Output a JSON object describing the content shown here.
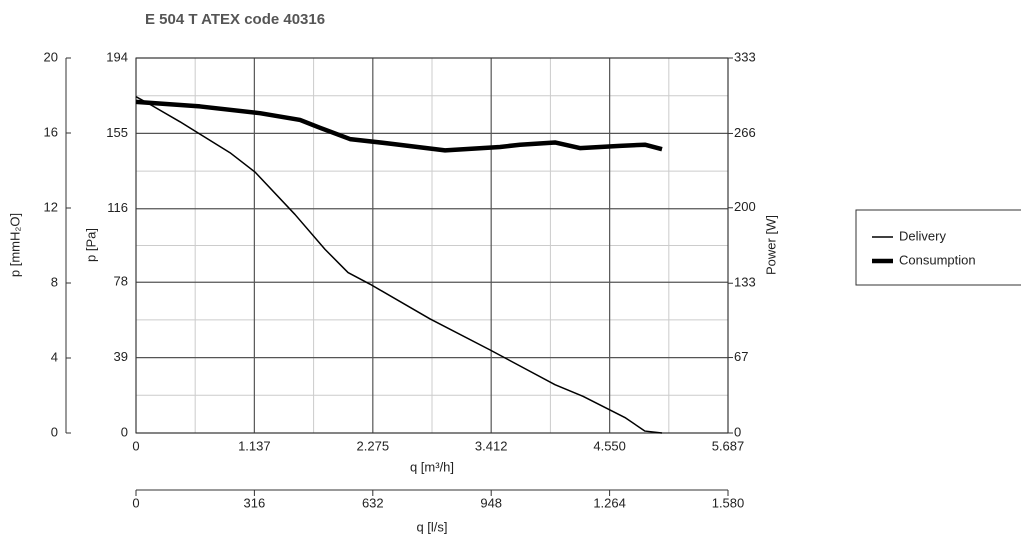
{
  "chart_data": {
    "type": "line",
    "title": "E 504 T ATEX code 40316",
    "x_label": "q [m³/h]",
    "x2_label": "q [l/s]",
    "y_label": "p [Pa]",
    "y3_label": "p [mmH₂O]",
    "y2_label": "Power [W]",
    "xlim": [
      0,
      5687
    ],
    "xticks": [
      0,
      {
        "value": 1137,
        "label": "1.137"
      },
      {
        "value": 2275,
        "label": "2.275"
      },
      {
        "value": 3412,
        "label": "3.412"
      },
      {
        "value": 4550,
        "label": "4.550"
      },
      {
        "value": 5687,
        "label": "5.687"
      }
    ],
    "x2lim": [
      0,
      1580
    ],
    "x2ticks": [
      0,
      316,
      632,
      948,
      {
        "value": 1264,
        "label": "1.264"
      },
      {
        "value": 1580,
        "label": "1.580"
      }
    ],
    "ylim": [
      0,
      194
    ],
    "yticks": [
      0,
      39,
      78,
      116,
      155,
      194
    ],
    "y3lim": [
      0,
      20
    ],
    "y3ticks": [
      0,
      4,
      8,
      12,
      16,
      20
    ],
    "y2lim": [
      0,
      333
    ],
    "y2ticks": [
      0,
      67,
      133,
      200,
      266,
      333
    ],
    "grid": true,
    "legend": "right",
    "series": [
      {
        "name": "Delivery",
        "color": "#000000",
        "width": 1.5,
        "x": [
          0,
          134,
          423,
          903,
          1143,
          1528,
          1816,
          2037,
          2248,
          2825,
          3400,
          4025,
          4294,
          4697,
          4889,
          5053
        ],
        "values": [
          174,
          170,
          161,
          145,
          135,
          113,
          95,
          83,
          77,
          59,
          43,
          25,
          19,
          8,
          1,
          0
        ]
      },
      {
        "name": "Consumption",
        "color": "#000000",
        "width": 4.5,
        "axis": "y2",
        "x": [
          0,
          615,
          1191,
          1576,
          1768,
          2056,
          2440,
          2969,
          3497,
          3689,
          4025,
          4265,
          4650,
          4889,
          5053
        ],
        "values": [
          294,
          290,
          284,
          278,
          271,
          261,
          257,
          251,
          254,
          256,
          258,
          253,
          255,
          256,
          252
        ]
      }
    ]
  }
}
